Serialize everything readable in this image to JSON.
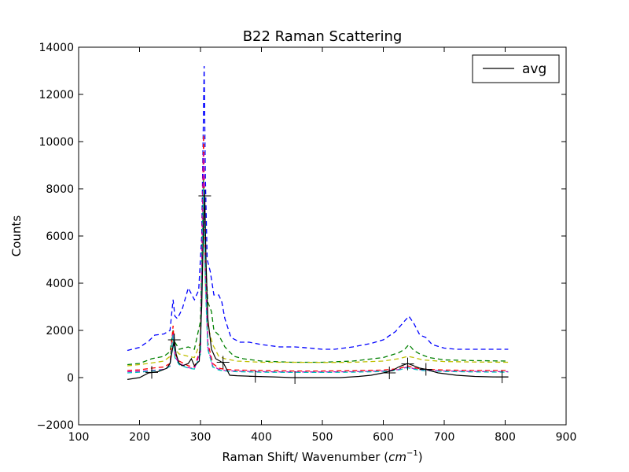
{
  "chart_data": {
    "type": "line",
    "title": "B22 Raman Scattering",
    "xlabel": "Raman Shift/ Wavenumber (",
    "xlabel_math": "cm",
    "xlabel_sup": "−1",
    "xlabel_close": ")",
    "ylabel": "Counts",
    "xlim": [
      100,
      900
    ],
    "ylim": [
      -2000,
      14000
    ],
    "xticks": [
      100,
      200,
      300,
      400,
      500,
      600,
      700,
      800,
      900
    ],
    "yticks": [
      -2000,
      0,
      2000,
      4000,
      6000,
      8000,
      10000,
      12000,
      14000
    ],
    "xtick_labels": [
      "100",
      "200",
      "300",
      "400",
      "500",
      "600",
      "700",
      "800",
      "900"
    ],
    "ytick_labels": [
      "−2000",
      "0",
      "2000",
      "4000",
      "6000",
      "8000",
      "10000",
      "12000",
      "14000"
    ],
    "legend": {
      "position": "top-right",
      "entries": [
        "avg"
      ]
    },
    "series": [
      {
        "name": "blue (dashed)",
        "color": "#0000ff",
        "style": "dashed",
        "points": [
          [
            180,
            1150
          ],
          [
            200,
            1280
          ],
          [
            215,
            1550
          ],
          [
            225,
            1800
          ],
          [
            240,
            1850
          ],
          [
            250,
            2000
          ],
          [
            255,
            3300
          ],
          [
            258,
            2600
          ],
          [
            262,
            2500
          ],
          [
            270,
            2900
          ],
          [
            280,
            3800
          ],
          [
            290,
            3300
          ],
          [
            297,
            3700
          ],
          [
            302,
            6000
          ],
          [
            306,
            13200
          ],
          [
            308,
            8500
          ],
          [
            311,
            5000
          ],
          [
            316,
            4500
          ],
          [
            322,
            3500
          ],
          [
            330,
            3500
          ],
          [
            335,
            3200
          ],
          [
            340,
            2500
          ],
          [
            350,
            1700
          ],
          [
            365,
            1500
          ],
          [
            380,
            1500
          ],
          [
            400,
            1400
          ],
          [
            430,
            1300
          ],
          [
            455,
            1300
          ],
          [
            480,
            1250
          ],
          [
            500,
            1200
          ],
          [
            520,
            1200
          ],
          [
            550,
            1300
          ],
          [
            580,
            1450
          ],
          [
            600,
            1600
          ],
          [
            620,
            1950
          ],
          [
            635,
            2400
          ],
          [
            642,
            2600
          ],
          [
            650,
            2300
          ],
          [
            660,
            1800
          ],
          [
            670,
            1700
          ],
          [
            680,
            1400
          ],
          [
            700,
            1250
          ],
          [
            720,
            1200
          ],
          [
            750,
            1200
          ],
          [
            770,
            1200
          ],
          [
            805,
            1200
          ]
        ]
      },
      {
        "name": "green (dashed)",
        "color": "#008000",
        "style": "dashed",
        "points": [
          [
            180,
            550
          ],
          [
            200,
            600
          ],
          [
            220,
            800
          ],
          [
            240,
            900
          ],
          [
            250,
            1100
          ],
          [
            255,
            2000
          ],
          [
            258,
            1500
          ],
          [
            265,
            1200
          ],
          [
            280,
            1300
          ],
          [
            290,
            1200
          ],
          [
            300,
            2400
          ],
          [
            305,
            8500
          ],
          [
            308,
            5000
          ],
          [
            312,
            3200
          ],
          [
            318,
            2800
          ],
          [
            322,
            2000
          ],
          [
            330,
            1800
          ],
          [
            340,
            1300
          ],
          [
            355,
            900
          ],
          [
            370,
            800
          ],
          [
            400,
            700
          ],
          [
            450,
            650
          ],
          [
            500,
            650
          ],
          [
            550,
            700
          ],
          [
            600,
            850
          ],
          [
            625,
            1050
          ],
          [
            635,
            1200
          ],
          [
            642,
            1400
          ],
          [
            650,
            1150
          ],
          [
            660,
            1000
          ],
          [
            675,
            850
          ],
          [
            700,
            750
          ],
          [
            750,
            720
          ],
          [
            805,
            700
          ]
        ]
      },
      {
        "name": "yellow (dashed)",
        "color": "#bfbf00",
        "style": "dashed",
        "points": [
          [
            180,
            500
          ],
          [
            200,
            550
          ],
          [
            220,
            620
          ],
          [
            240,
            700
          ],
          [
            250,
            900
          ],
          [
            255,
            1700
          ],
          [
            258,
            1200
          ],
          [
            265,
            1000
          ],
          [
            280,
            900
          ],
          [
            290,
            850
          ],
          [
            300,
            1500
          ],
          [
            305,
            7000
          ],
          [
            308,
            4000
          ],
          [
            312,
            2200
          ],
          [
            320,
            1400
          ],
          [
            330,
            900
          ],
          [
            340,
            800
          ],
          [
            360,
            700
          ],
          [
            400,
            650
          ],
          [
            450,
            650
          ],
          [
            500,
            640
          ],
          [
            550,
            650
          ],
          [
            600,
            700
          ],
          [
            625,
            800
          ],
          [
            640,
            900
          ],
          [
            650,
            850
          ],
          [
            665,
            750
          ],
          [
            700,
            680
          ],
          [
            750,
            660
          ],
          [
            805,
            650
          ]
        ]
      },
      {
        "name": "red (dashed)",
        "color": "#ff0000",
        "style": "dashed",
        "points": [
          [
            180,
            300
          ],
          [
            200,
            330
          ],
          [
            220,
            400
          ],
          [
            240,
            450
          ],
          [
            250,
            600
          ],
          [
            255,
            2200
          ],
          [
            258,
            1000
          ],
          [
            265,
            700
          ],
          [
            280,
            500
          ],
          [
            290,
            450
          ],
          [
            300,
            1200
          ],
          [
            305,
            10300
          ],
          [
            308,
            5000
          ],
          [
            312,
            1500
          ],
          [
            320,
            600
          ],
          [
            330,
            400
          ],
          [
            340,
            350
          ],
          [
            360,
            320
          ],
          [
            400,
            300
          ],
          [
            450,
            280
          ],
          [
            500,
            280
          ],
          [
            550,
            290
          ],
          [
            600,
            320
          ],
          [
            625,
            380
          ],
          [
            640,
            500
          ],
          [
            650,
            420
          ],
          [
            665,
            360
          ],
          [
            700,
            320
          ],
          [
            750,
            300
          ],
          [
            805,
            300
          ]
        ]
      },
      {
        "name": "magenta (dashed)",
        "color": "#bf00bf",
        "style": "dashed",
        "points": [
          [
            180,
            250
          ],
          [
            200,
            270
          ],
          [
            220,
            300
          ],
          [
            240,
            350
          ],
          [
            250,
            500
          ],
          [
            255,
            1900
          ],
          [
            258,
            900
          ],
          [
            265,
            600
          ],
          [
            280,
            420
          ],
          [
            290,
            380
          ],
          [
            300,
            1100
          ],
          [
            305,
            9500
          ],
          [
            308,
            4500
          ],
          [
            312,
            1300
          ],
          [
            320,
            500
          ],
          [
            330,
            350
          ],
          [
            340,
            300
          ],
          [
            360,
            270
          ],
          [
            400,
            250
          ],
          [
            450,
            240
          ],
          [
            500,
            240
          ],
          [
            550,
            250
          ],
          [
            600,
            280
          ],
          [
            625,
            340
          ],
          [
            640,
            450
          ],
          [
            650,
            380
          ],
          [
            665,
            320
          ],
          [
            700,
            280
          ],
          [
            750,
            260
          ],
          [
            805,
            250
          ]
        ]
      },
      {
        "name": "cyan (dashed)",
        "color": "#00bfbf",
        "style": "dashed",
        "points": [
          [
            180,
            200
          ],
          [
            200,
            230
          ],
          [
            220,
            280
          ],
          [
            240,
            330
          ],
          [
            250,
            480
          ],
          [
            255,
            1800
          ],
          [
            258,
            850
          ],
          [
            265,
            550
          ],
          [
            280,
            400
          ],
          [
            290,
            360
          ],
          [
            300,
            1000
          ],
          [
            305,
            8000
          ],
          [
            308,
            4000
          ],
          [
            312,
            1200
          ],
          [
            320,
            450
          ],
          [
            330,
            320
          ],
          [
            340,
            280
          ],
          [
            360,
            250
          ],
          [
            400,
            230
          ],
          [
            450,
            220
          ],
          [
            500,
            220
          ],
          [
            550,
            230
          ],
          [
            600,
            260
          ],
          [
            625,
            320
          ],
          [
            640,
            420
          ],
          [
            650,
            360
          ],
          [
            665,
            300
          ],
          [
            700,
            260
          ],
          [
            750,
            240
          ],
          [
            805,
            230
          ]
        ]
      },
      {
        "name": "avg",
        "color": "#000000",
        "style": "solid",
        "points": [
          [
            180,
            -80
          ],
          [
            200,
            0
          ],
          [
            215,
            200
          ],
          [
            230,
            250
          ],
          [
            245,
            400
          ],
          [
            250,
            600
          ],
          [
            254,
            1200
          ],
          [
            257,
            1600
          ],
          [
            260,
            1000
          ],
          [
            265,
            600
          ],
          [
            270,
            500
          ],
          [
            280,
            600
          ],
          [
            285,
            800
          ],
          [
            290,
            500
          ],
          [
            298,
            700
          ],
          [
            302,
            3000
          ],
          [
            305,
            6500
          ],
          [
            307,
            7700
          ],
          [
            309,
            5000
          ],
          [
            312,
            2500
          ],
          [
            318,
            1200
          ],
          [
            325,
            800
          ],
          [
            332,
            700
          ],
          [
            338,
            600
          ],
          [
            342,
            400
          ],
          [
            348,
            100
          ],
          [
            360,
            80
          ],
          [
            390,
            50
          ],
          [
            420,
            30
          ],
          [
            450,
            0
          ],
          [
            480,
            0
          ],
          [
            500,
            0
          ],
          [
            530,
            0
          ],
          [
            560,
            50
          ],
          [
            580,
            100
          ],
          [
            600,
            200
          ],
          [
            615,
            300
          ],
          [
            625,
            450
          ],
          [
            640,
            600
          ],
          [
            650,
            500
          ],
          [
            660,
            400
          ],
          [
            670,
            350
          ],
          [
            690,
            200
          ],
          [
            720,
            100
          ],
          [
            750,
            50
          ],
          [
            780,
            30
          ],
          [
            805,
            30
          ]
        ]
      }
    ],
    "avg_markers": [
      [
        220,
        220
      ],
      [
        257,
        1600
      ],
      [
        307,
        7700
      ],
      [
        337,
        650
      ],
      [
        390,
        50
      ],
      [
        455,
        0
      ],
      [
        610,
        200
      ],
      [
        640,
        580
      ],
      [
        670,
        350
      ],
      [
        795,
        30
      ]
    ]
  }
}
